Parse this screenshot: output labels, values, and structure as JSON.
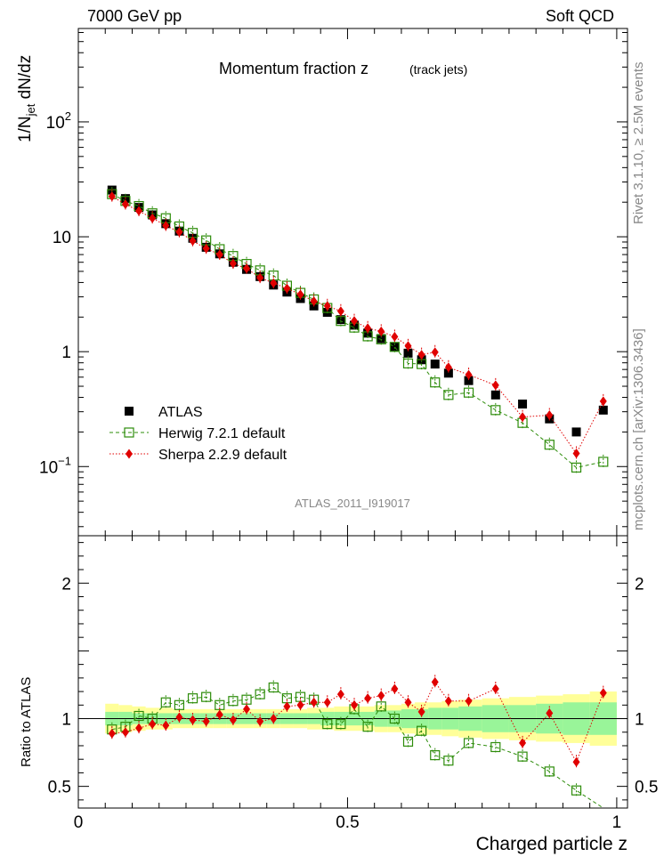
{
  "header": {
    "left": "7000 GeV pp",
    "right": "Soft QCD"
  },
  "side": {
    "rivet": "Rivet 3.1.10, ≥ 2.5M events",
    "mcplots": "mcplots.cern.ch [arXiv:1306.3436]"
  },
  "chart_data": [
    {
      "type": "scatter",
      "panel": "main",
      "title_main": "Momentum fraction z",
      "title_sub": "(track jets)",
      "analysis_id": "ATLAS_2011_I919017",
      "ylabel": "1/N",
      "ylabel_sub": "jet",
      "ylabel_tail": " dN/dz",
      "yscale": "log",
      "xlim": [
        0,
        1.02
      ],
      "ylim": [
        0.025,
        650
      ],
      "y_ticks": [
        {
          "v": 0.1,
          "base": "10",
          "exp": "−1"
        },
        {
          "v": 1,
          "base": "1",
          "exp": ""
        },
        {
          "v": 10,
          "base": "10",
          "exp": ""
        },
        {
          "v": 100,
          "base": "10",
          "exp": "2"
        }
      ],
      "x": [
        0.0625,
        0.0875,
        0.1125,
        0.1375,
        0.1625,
        0.1875,
        0.2125,
        0.2375,
        0.2625,
        0.2875,
        0.3125,
        0.3375,
        0.3625,
        0.3875,
        0.4125,
        0.4375,
        0.4625,
        0.4875,
        0.5125,
        0.5375,
        0.5625,
        0.5875,
        0.6125,
        0.6375,
        0.6625,
        0.6875,
        0.725,
        0.775,
        0.825,
        0.875,
        0.925,
        0.975
      ],
      "series": [
        {
          "name": "ATLAS",
          "style": "data",
          "color": "#000000",
          "values": [
            25.5,
            21.5,
            18.0,
            15.5,
            13.0,
            11.2,
            9.7,
            8.1,
            7.1,
            6.0,
            5.2,
            4.5,
            3.8,
            3.3,
            2.9,
            2.5,
            2.2,
            1.9,
            1.7,
            1.45,
            1.3,
            1.1,
            0.97,
            0.85,
            0.78,
            0.65,
            0.56,
            0.42,
            0.35,
            0.26,
            0.2,
            0.31
          ]
        },
        {
          "name": "Herwig 7.2.1 default",
          "style": "open-square",
          "color": "#2d8c0a",
          "values": [
            23.5,
            20.5,
            18.5,
            16.0,
            14.5,
            12.3,
            10.8,
            9.3,
            7.8,
            6.8,
            5.8,
            5.1,
            4.6,
            3.75,
            3.25,
            2.85,
            2.4,
            1.85,
            1.62,
            1.36,
            1.28,
            1.1,
            0.79,
            0.78,
            0.54,
            0.42,
            0.44,
            0.31,
            0.24,
            0.155,
            0.098,
            0.11
          ]
        },
        {
          "name": "Sherpa 2.2.9 default",
          "style": "diamond",
          "color": "#e00000",
          "values": [
            22.5,
            19.2,
            16.8,
            14.5,
            12.5,
            11.0,
            9.2,
            7.9,
            7.0,
            5.85,
            5.3,
            4.4,
            3.95,
            3.55,
            3.15,
            2.75,
            2.5,
            2.25,
            1.85,
            1.6,
            1.5,
            1.35,
            1.12,
            0.94,
            0.99,
            0.73,
            0.63,
            0.51,
            0.27,
            0.28,
            0.13,
            0.37
          ]
        }
      ],
      "legend": {
        "placement": "bottom-left"
      }
    },
    {
      "type": "scatter",
      "panel": "ratio",
      "ylabel": "Ratio to ATLAS",
      "xlabel": "Charged particle z",
      "xlim": [
        0,
        1.02
      ],
      "ylim": [
        0.34,
        2.35
      ],
      "x_ticks": [
        {
          "v": 0,
          "label": "0"
        },
        {
          "v": 0.5,
          "label": "0.5"
        },
        {
          "v": 1,
          "label": "1"
        }
      ],
      "y_ticks": [
        {
          "v": 0.5,
          "label": "0.5"
        },
        {
          "v": 1,
          "label": "1"
        },
        {
          "v": 2,
          "label": "2"
        }
      ],
      "band_inner": [
        0.05,
        0.05,
        0.04,
        0.04,
        0.04,
        0.04,
        0.04,
        0.04,
        0.04,
        0.04,
        0.04,
        0.04,
        0.04,
        0.04,
        0.04,
        0.04,
        0.05,
        0.05,
        0.05,
        0.05,
        0.06,
        0.06,
        0.07,
        0.07,
        0.08,
        0.08,
        0.09,
        0.1,
        0.1,
        0.11,
        0.12,
        0.12
      ],
      "band_outer": [
        0.11,
        0.1,
        0.09,
        0.08,
        0.08,
        0.07,
        0.07,
        0.07,
        0.07,
        0.07,
        0.07,
        0.07,
        0.07,
        0.07,
        0.07,
        0.08,
        0.08,
        0.09,
        0.09,
        0.09,
        0.1,
        0.1,
        0.11,
        0.12,
        0.12,
        0.13,
        0.14,
        0.15,
        0.16,
        0.17,
        0.18,
        0.2
      ],
      "series": [
        {
          "name": "Herwig 7.2.1 default",
          "style": "open-square",
          "color": "#2d8c0a",
          "values": [
            0.92,
            0.94,
            1.02,
            1.0,
            1.12,
            1.1,
            1.15,
            1.16,
            1.1,
            1.13,
            1.14,
            1.18,
            1.23,
            1.15,
            1.16,
            1.14,
            0.96,
            0.96,
            1.07,
            0.94,
            1.09,
            1.0,
            0.83,
            0.91,
            0.73,
            0.69,
            0.82,
            0.79,
            0.72,
            0.61,
            0.47,
            0.32
          ]
        },
        {
          "name": "Sherpa 2.2.9 default",
          "style": "diamond",
          "color": "#e00000",
          "values": [
            0.89,
            0.9,
            0.93,
            0.96,
            0.95,
            1.01,
            0.99,
            0.98,
            1.03,
            0.99,
            1.07,
            0.98,
            1.0,
            1.09,
            1.1,
            1.12,
            1.12,
            1.18,
            1.1,
            1.15,
            1.17,
            1.22,
            1.12,
            1.05,
            1.27,
            1.13,
            1.13,
            1.22,
            0.82,
            1.04,
            0.68,
            1.19
          ]
        }
      ]
    }
  ]
}
